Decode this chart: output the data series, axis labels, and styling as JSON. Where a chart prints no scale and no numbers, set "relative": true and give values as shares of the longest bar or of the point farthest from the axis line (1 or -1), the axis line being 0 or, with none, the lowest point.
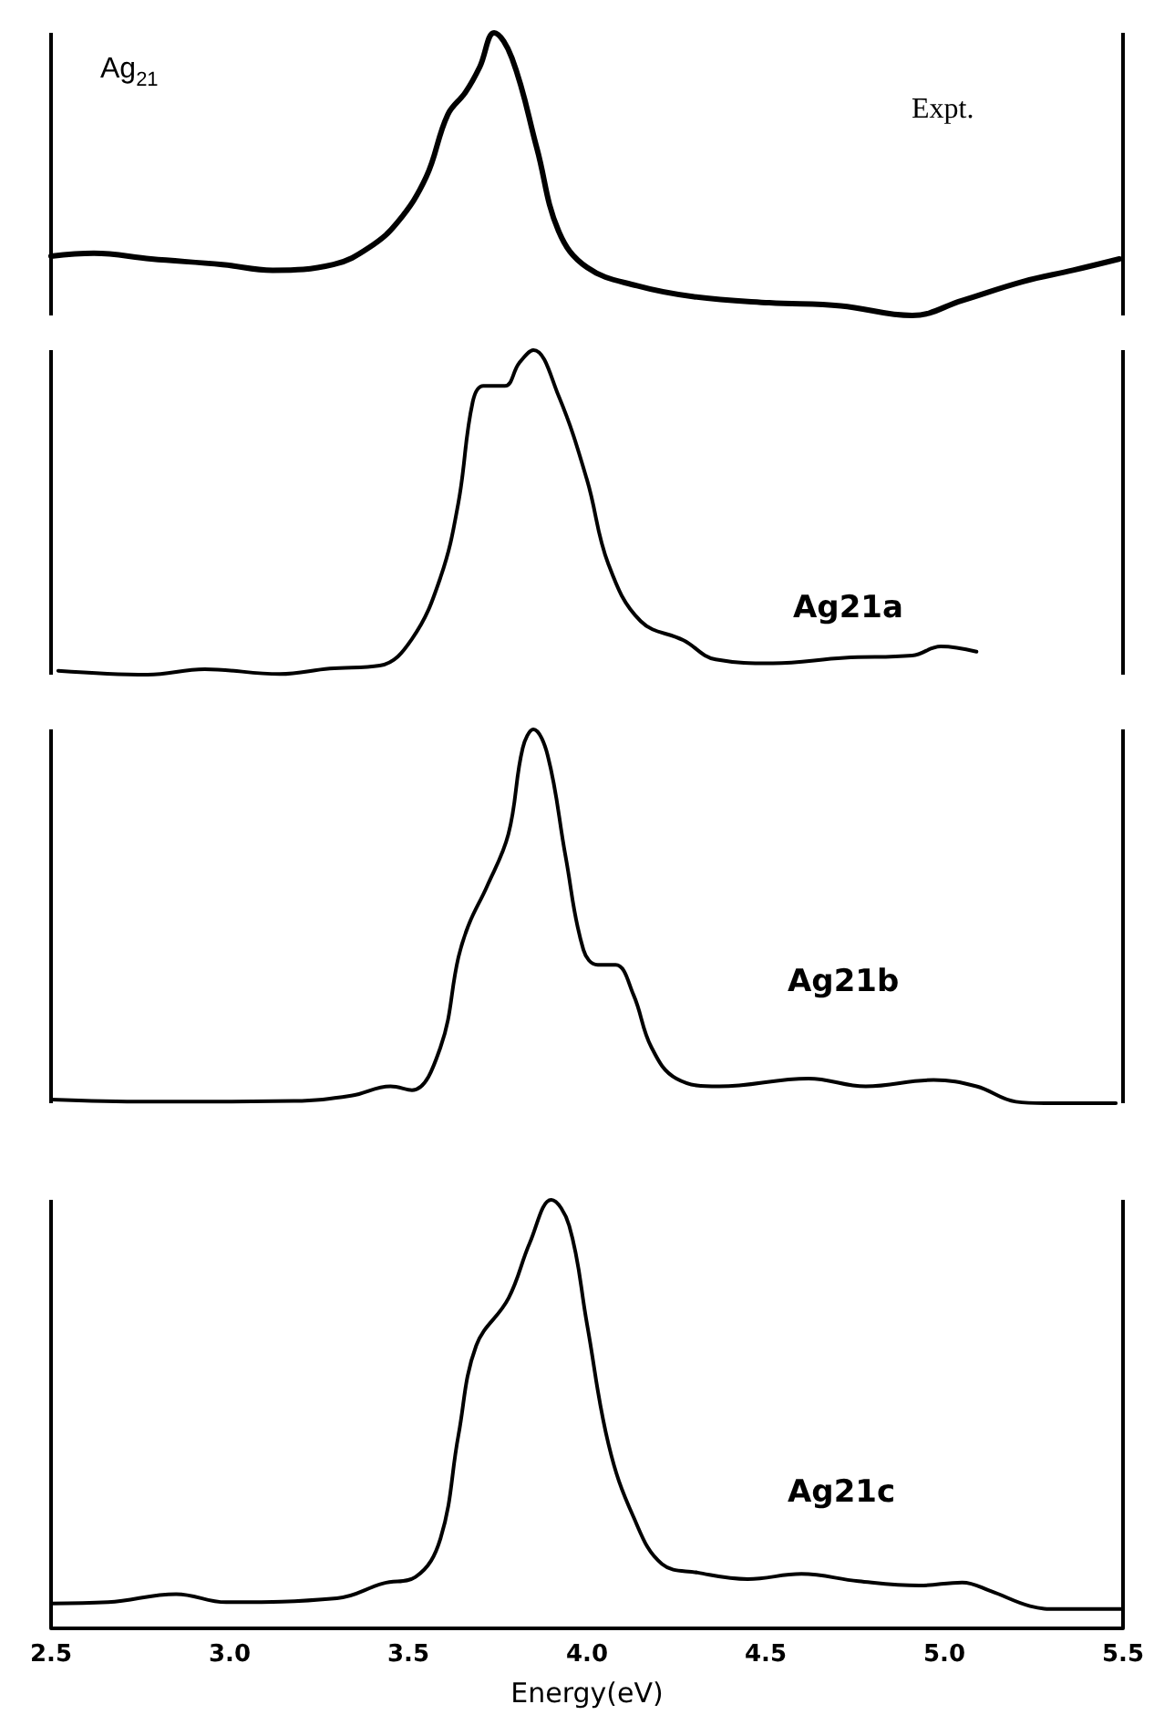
{
  "chart_data": [
    {
      "type": "line",
      "relative": true,
      "xlim": [
        2.5,
        5.5
      ],
      "tick_labels": false,
      "annotations": [
        "Ag$_{21}$"
      ],
      "series": [
        {
          "name": "Expt.",
          "color": "#000000",
          "x": [
            2.5,
            2.62,
            2.78,
            2.98,
            3.12,
            3.29,
            3.39,
            3.47,
            3.55,
            3.61,
            3.66,
            3.7,
            3.74,
            3.79,
            3.86,
            3.92,
            4.0,
            4.14,
            4.3,
            4.51,
            4.71,
            4.91,
            5.05,
            5.22,
            5.36,
            5.49
          ],
          "values": [
            0.21,
            0.22,
            0.2,
            0.18,
            0.16,
            0.18,
            0.24,
            0.33,
            0.49,
            0.71,
            0.79,
            0.88,
            1.0,
            0.91,
            0.59,
            0.3,
            0.17,
            0.105,
            0.066,
            0.045,
            0.034,
            0,
            0.053,
            0.12,
            0.16,
            0.2
          ]
        }
      ]
    },
    {
      "type": "line",
      "relative": true,
      "xlim": [
        2.5,
        5.5
      ],
      "tick_labels": false,
      "series": [
        {
          "name": "Ag21a",
          "color": "#000000",
          "x": [
            2.52,
            2.77,
            2.93,
            3.14,
            3.28,
            3.42,
            3.51,
            3.59,
            3.64,
            3.68,
            3.71,
            3.77,
            3.81,
            3.85,
            3.92,
            4.0,
            4.06,
            4.15,
            4.27,
            4.36,
            4.52,
            4.72,
            4.91,
            4.99,
            5.09
          ],
          "values": [
            0.012,
            0,
            0.017,
            0.002,
            0.019,
            0.028,
            0.11,
            0.3,
            0.53,
            0.84,
            0.89,
            0.89,
            0.96,
            1.0,
            0.86,
            0.6,
            0.34,
            0.165,
            0.106,
            0.047,
            0.035,
            0.052,
            0.059,
            0.087,
            0.071
          ]
        }
      ]
    },
    {
      "type": "line",
      "relative": true,
      "xlim": [
        2.5,
        5.5
      ],
      "tick_labels": false,
      "series": [
        {
          "name": "Ag21b",
          "color": "#000000",
          "x": [
            2.5,
            2.77,
            3.18,
            3.34,
            3.45,
            3.51,
            3.59,
            3.64,
            3.67,
            3.72,
            3.78,
            3.82,
            3.85,
            3.89,
            3.94,
            3.99,
            4.03,
            4.08,
            4.13,
            4.18,
            4.25,
            4.37,
            4.62,
            4.78,
            4.97,
            5.09,
            5.2,
            5.28,
            5.48
          ],
          "values": [
            0.01,
            0.004,
            0.006,
            0.02,
            0.045,
            0.035,
            0.15,
            0.39,
            0.48,
            0.58,
            0.72,
            0.95,
            1.0,
            0.93,
            0.66,
            0.41,
            0.37,
            0.37,
            0.29,
            0.15,
            0.066,
            0.045,
            0.066,
            0.045,
            0.062,
            0.045,
            0.004,
            0,
            0
          ]
        }
      ]
    },
    {
      "type": "line",
      "relative": true,
      "xlim": [
        2.5,
        5.5
      ],
      "xticks": [
        2.5,
        {
          "value": 3,
          "label": "3.0"
        },
        3.5,
        {
          "value": 4,
          "label": "4.0"
        },
        4.5,
        {
          "value": 5,
          "label": "5.0"
        },
        5.5
      ],
      "xlabel": "Energy(eV)",
      "tick_labels": "x",
      "series": [
        {
          "name": "Ag21c",
          "color": "#000000",
          "x": [
            2.5,
            2.66,
            2.85,
            2.99,
            3.3,
            3.43,
            3.52,
            3.59,
            3.64,
            3.69,
            3.78,
            3.84,
            3.9,
            3.95,
            4.0,
            4.06,
            4.13,
            4.21,
            4.31,
            4.45,
            4.6,
            4.76,
            4.93,
            5.05,
            5.13,
            5.24,
            5.32,
            5.5
          ],
          "values": [
            0.058,
            0.061,
            0.08,
            0.061,
            0.07,
            0.105,
            0.12,
            0.21,
            0.45,
            0.66,
            0.77,
            0.9,
            1.0,
            0.94,
            0.71,
            0.43,
            0.26,
            0.15,
            0.13,
            0.115,
            0.127,
            0.11,
            0.1,
            0.107,
            0.087,
            0.052,
            0.045,
            0.045
          ]
        }
      ]
    }
  ]
}
